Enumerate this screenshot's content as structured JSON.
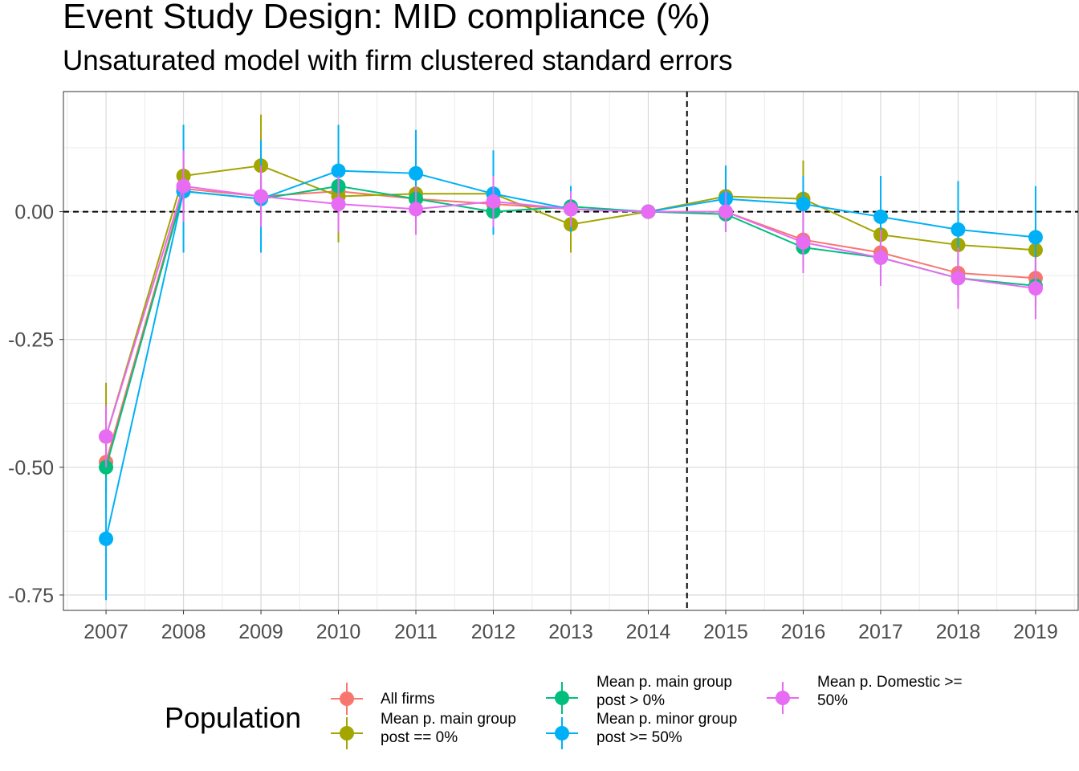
{
  "chart_data": {
    "type": "line",
    "title": "Event Study Design: MID compliance (%)",
    "subtitle": "Unsaturated model with firm clustered standard errors",
    "xlabel": "",
    "ylabel": "",
    "categories": [
      "2007",
      "2008",
      "2009",
      "2010",
      "2011",
      "2012",
      "2013",
      "2014",
      "2015",
      "2016",
      "2017",
      "2018",
      "2019"
    ],
    "ylim": [
      -0.78,
      0.235
    ],
    "yticks": [
      -0.75,
      -0.5,
      -0.25,
      0.0
    ],
    "ytick_labels": [
      "-0.75",
      "-0.50",
      "-0.25",
      "0.00"
    ],
    "reference_lines": {
      "horizontal_y": 0,
      "vertical_between": [
        "2014",
        "2015"
      ]
    },
    "grid": true,
    "legend": {
      "title": "Population",
      "position": "bottom"
    },
    "series": [
      {
        "name": "All firms",
        "label_lines": [
          "All firms"
        ],
        "color": "#F8766D",
        "values": [
          -0.49,
          0.045,
          0.03,
          0.04,
          0.025,
          0.015,
          0.005,
          0.0,
          0.0,
          -0.055,
          -0.08,
          -0.12,
          -0.13
        ],
        "ci_low": [
          -0.55,
          -0.01,
          -0.02,
          -0.01,
          -0.02,
          -0.03,
          -0.03,
          0.0,
          -0.03,
          -0.09,
          -0.12,
          -0.16,
          -0.17
        ],
        "ci_high": [
          -0.43,
          0.1,
          0.08,
          0.09,
          0.07,
          0.06,
          0.04,
          0.0,
          0.03,
          -0.02,
          -0.04,
          -0.08,
          -0.09
        ]
      },
      {
        "name": "Mean p. main group post == 0%",
        "label_lines": [
          "Mean p. main group",
          "post == 0%"
        ],
        "color": "#A3A500",
        "values": [
          -0.44,
          0.07,
          0.09,
          0.03,
          0.035,
          0.035,
          -0.025,
          0.0,
          0.03,
          0.025,
          -0.045,
          -0.065,
          -0.075
        ],
        "ci_low": [
          -0.55,
          0.02,
          0.04,
          -0.06,
          -0.01,
          -0.01,
          -0.08,
          0.0,
          -0.03,
          -0.05,
          -0.09,
          -0.11,
          -0.12
        ],
        "ci_high": [
          -0.335,
          0.12,
          0.19,
          0.12,
          0.08,
          0.08,
          0.03,
          0.0,
          0.09,
          0.1,
          0.0,
          -0.02,
          -0.03
        ]
      },
      {
        "name": "Mean p. main group post > 0%",
        "label_lines": [
          "Mean p. main group",
          "post > 0%"
        ],
        "color": "#00BF7D",
        "values": [
          -0.5,
          0.04,
          0.025,
          0.05,
          0.025,
          0.0,
          0.01,
          0.0,
          -0.005,
          -0.07,
          -0.09,
          -0.13,
          -0.145
        ],
        "ci_low": [
          -0.58,
          0.0,
          -0.02,
          0.0,
          -0.02,
          -0.04,
          -0.03,
          0.0,
          -0.04,
          -0.11,
          -0.13,
          -0.17,
          -0.185
        ],
        "ci_high": [
          -0.42,
          0.08,
          0.07,
          0.1,
          0.07,
          0.04,
          0.05,
          0.0,
          0.03,
          -0.03,
          -0.05,
          -0.09,
          -0.105
        ]
      },
      {
        "name": "Mean p. minor group post >= 50%",
        "label_lines": [
          "Mean p. minor group",
          "post >= 50%"
        ],
        "color": "#00B0F6",
        "values": [
          -0.64,
          0.04,
          0.025,
          0.08,
          0.075,
          0.035,
          0.005,
          0.0,
          0.025,
          0.015,
          -0.01,
          -0.035,
          -0.05
        ],
        "ci_low": [
          -0.76,
          -0.08,
          -0.08,
          -0.01,
          -0.01,
          -0.045,
          -0.04,
          0.0,
          -0.04,
          -0.05,
          -0.09,
          -0.13,
          -0.15
        ],
        "ci_high": [
          -0.52,
          0.17,
          0.14,
          0.17,
          0.16,
          0.12,
          0.05,
          0.0,
          0.09,
          0.07,
          0.07,
          0.06,
          0.05
        ]
      },
      {
        "name": "Mean p. Domestic >= 50%",
        "label_lines": [
          "Mean p. Domestic >=",
          "50%"
        ],
        "color": "#E76BF3",
        "values": [
          -0.44,
          0.05,
          0.03,
          0.015,
          0.005,
          0.02,
          0.005,
          0.0,
          0.0,
          -0.06,
          -0.09,
          -0.13,
          -0.15
        ],
        "ci_low": [
          -0.5,
          -0.02,
          -0.03,
          -0.04,
          -0.045,
          -0.03,
          -0.03,
          0.0,
          -0.04,
          -0.12,
          -0.145,
          -0.19,
          -0.21
        ],
        "ci_high": [
          -0.38,
          0.12,
          0.09,
          0.07,
          0.05,
          0.07,
          0.04,
          0.0,
          0.04,
          0.0,
          -0.035,
          -0.07,
          -0.09
        ]
      }
    ]
  }
}
